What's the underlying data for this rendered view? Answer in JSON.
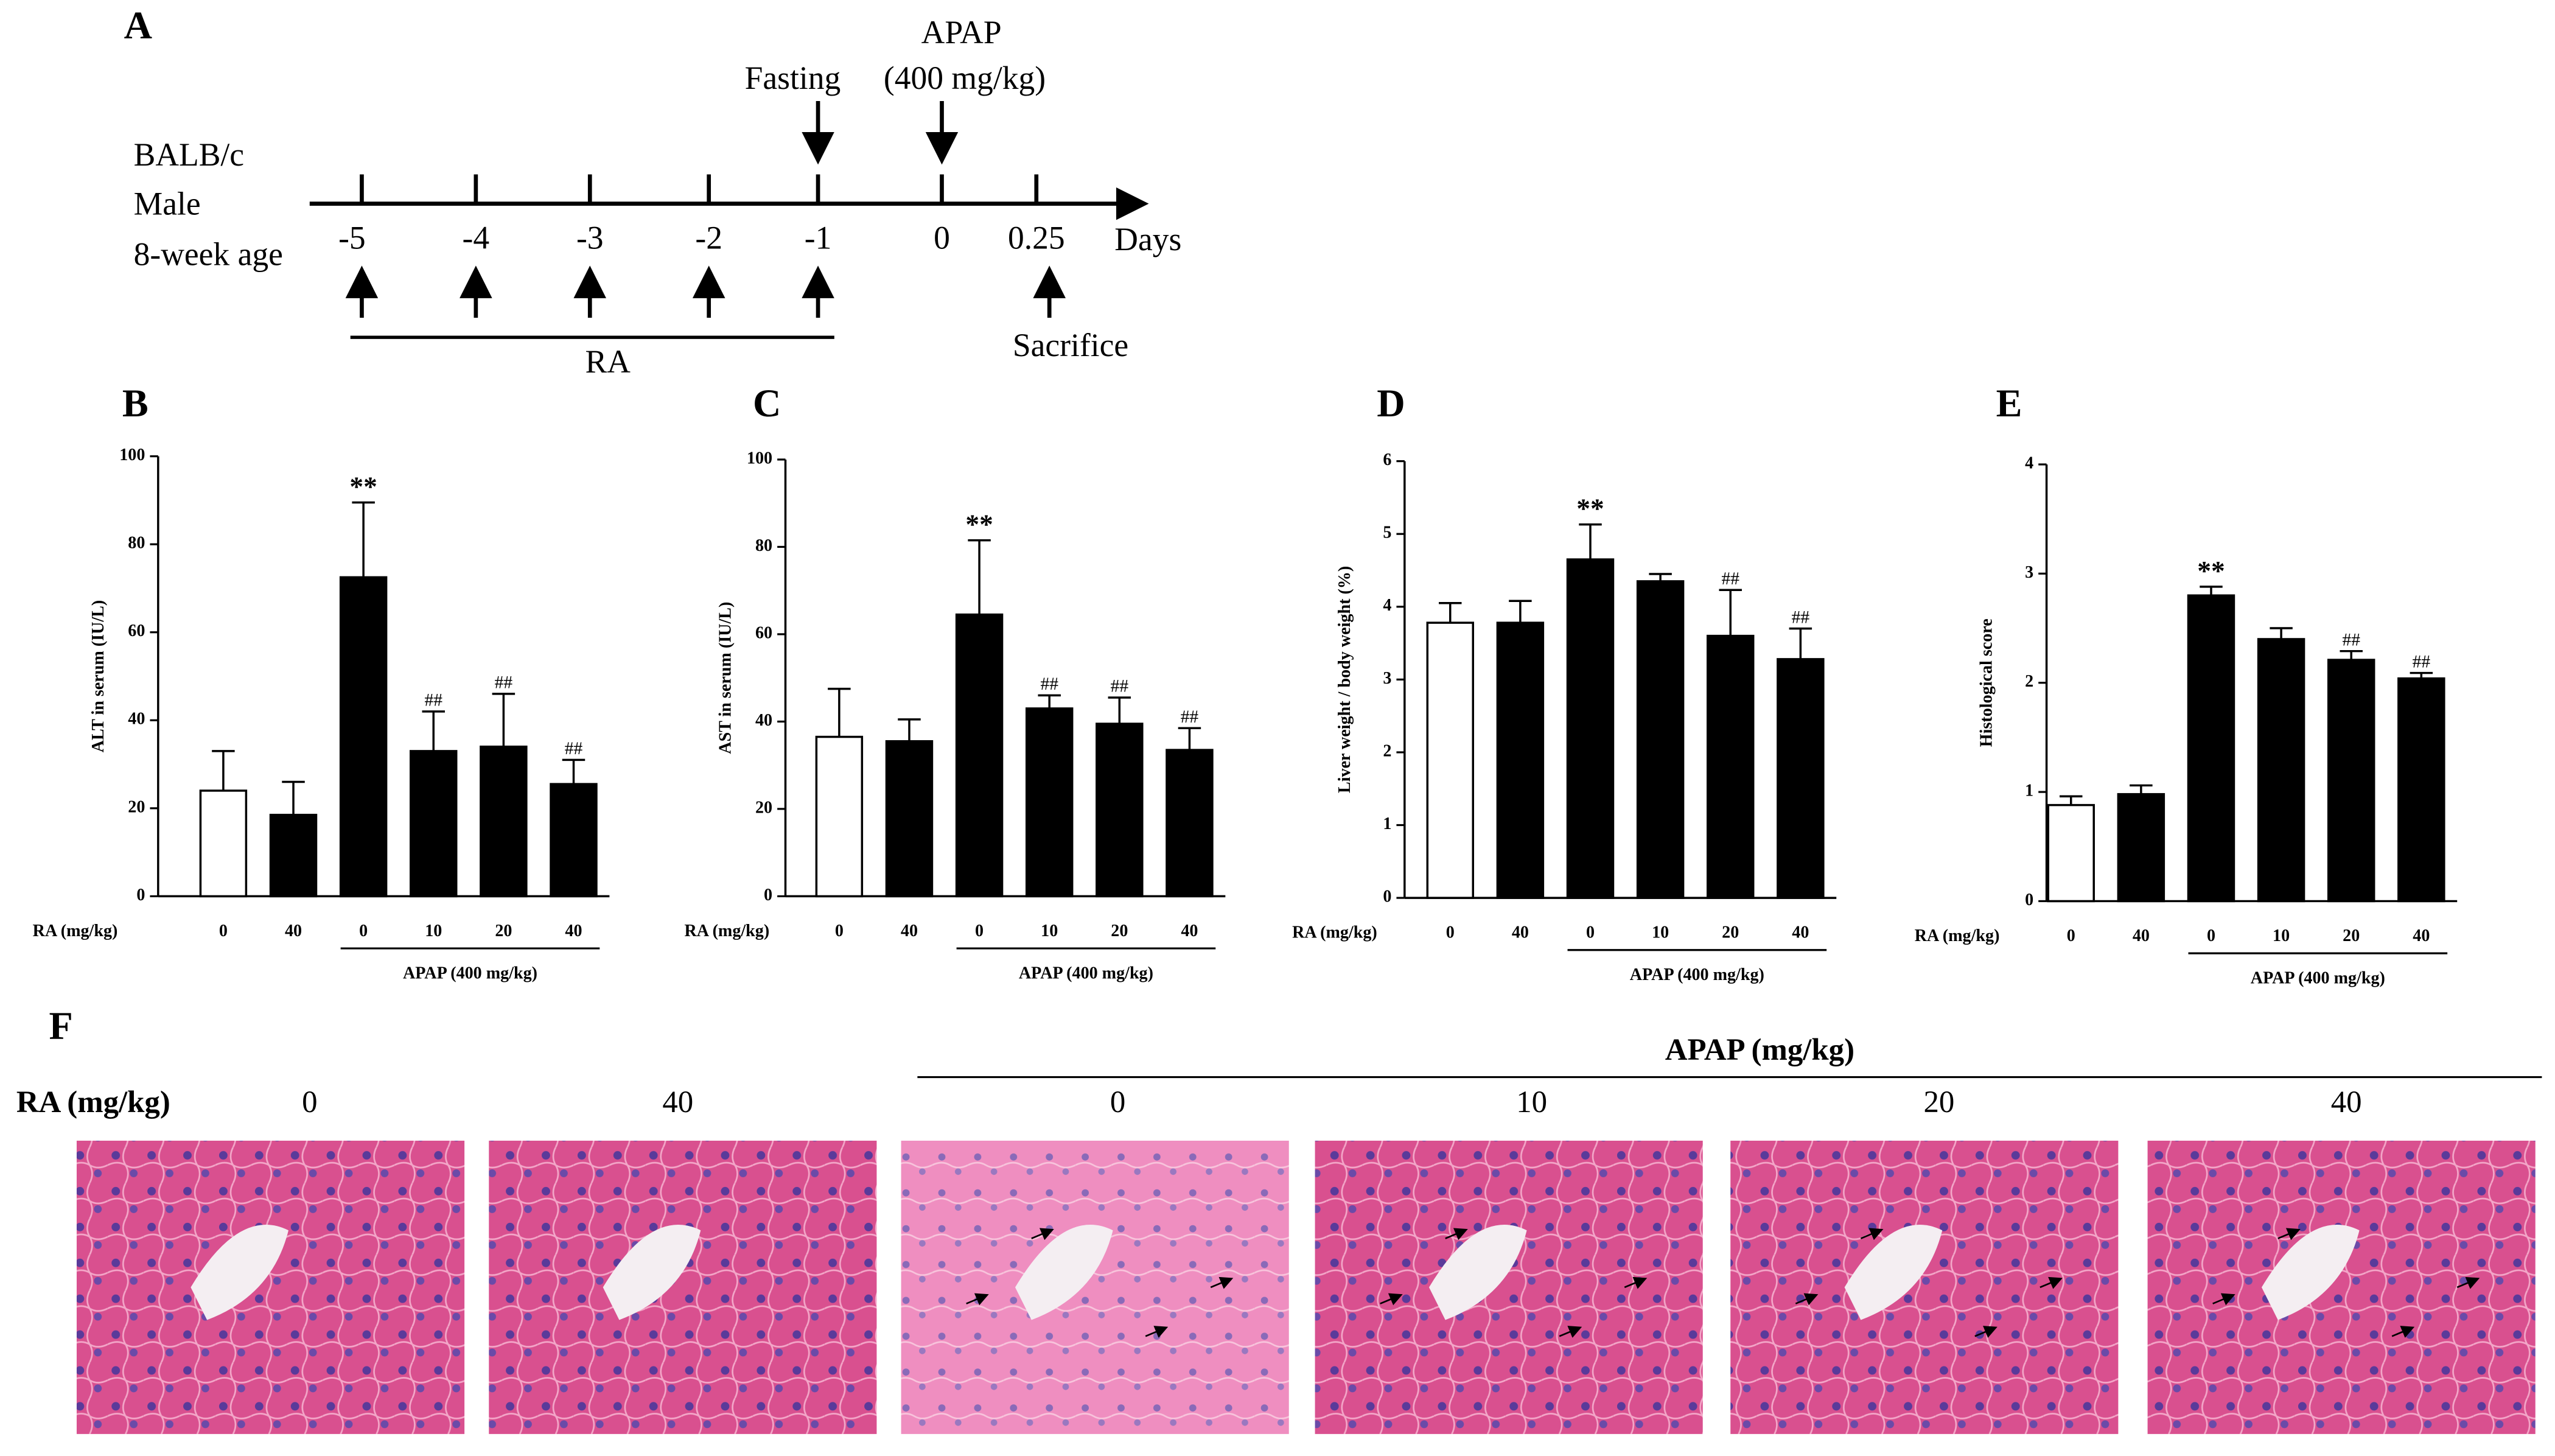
{
  "timeline": {
    "panel": "A",
    "subject": [
      "BALB/c",
      "Male",
      "8-week age"
    ],
    "ticks": [
      -5,
      -4,
      -3,
      -2,
      -1,
      0,
      0.25
    ],
    "unit": "Days",
    "fasting": "Fasting",
    "apap": "APAP",
    "apap_dose": "(400 mg/kg)",
    "treatment": "RA",
    "end": "Sacrifice"
  },
  "chart_data": [
    {
      "type": "bar",
      "panel": "B",
      "ylabel": "ALT in serum (IU/L)",
      "xlabel": "RA (mg/kg)",
      "group_label": "APAP (400 mg/kg)",
      "categories": [
        "0",
        "40",
        "0",
        "10",
        "20",
        "40"
      ],
      "values": [
        24,
        18.5,
        72.5,
        33,
        34,
        25.5
      ],
      "errors": [
        9,
        7.5,
        17,
        9,
        12,
        5.5
      ],
      "colors": [
        "#ffffff",
        "#000000",
        "#000000",
        "#000000",
        "#000000",
        "#000000"
      ],
      "annotations": [
        null,
        null,
        "**",
        "##",
        "##",
        "##"
      ],
      "ylim": [
        0,
        100
      ],
      "yticks": [
        0,
        20,
        40,
        60,
        80,
        100
      ]
    },
    {
      "type": "bar",
      "panel": "C",
      "ylabel": "AST in serum (IU/L)",
      "xlabel": "RA (mg/kg)",
      "group_label": "APAP (400 mg/kg)",
      "categories": [
        "0",
        "40",
        "0",
        "10",
        "20",
        "40"
      ],
      "values": [
        36.5,
        35.5,
        64.5,
        43,
        39.5,
        33.5
      ],
      "errors": [
        11,
        5,
        17,
        3,
        6,
        5
      ],
      "colors": [
        "#ffffff",
        "#000000",
        "#000000",
        "#000000",
        "#000000",
        "#000000"
      ],
      "annotations": [
        null,
        null,
        "**",
        "##",
        "##",
        "##"
      ],
      "ylim": [
        0,
        100
      ],
      "yticks": [
        0,
        20,
        40,
        60,
        80,
        100
      ]
    },
    {
      "type": "bar",
      "panel": "D",
      "ylabel": "Liver weight / body weight (%)",
      "xlabel": "RA (mg/kg)",
      "group_label": "APAP (400 mg/kg)",
      "categories": [
        "0",
        "40",
        "0",
        "10",
        "20",
        "40"
      ],
      "values": [
        3.78,
        3.78,
        4.65,
        4.35,
        3.6,
        3.28
      ],
      "errors": [
        0.27,
        0.3,
        0.48,
        0.1,
        0.63,
        0.42
      ],
      "colors": [
        "#ffffff",
        "#000000",
        "#000000",
        "#000000",
        "#000000",
        "#000000"
      ],
      "annotations": [
        null,
        null,
        "**",
        null,
        "##",
        "##"
      ],
      "ylim": [
        0,
        6
      ],
      "yticks": [
        0,
        1,
        2,
        3,
        4,
        5,
        6
      ]
    },
    {
      "type": "bar",
      "panel": "E",
      "ylabel": "Histological score",
      "xlabel": "RA (mg/kg)",
      "group_label": "APAP (400 mg/kg)",
      "categories": [
        "0",
        "40",
        "0",
        "10",
        "20",
        "40"
      ],
      "values": [
        0.88,
        0.98,
        2.8,
        2.4,
        2.21,
        2.04
      ],
      "errors": [
        0.08,
        0.08,
        0.08,
        0.1,
        0.08,
        0.05
      ],
      "colors": [
        "#ffffff",
        "#000000",
        "#000000",
        "#000000",
        "#000000",
        "#000000"
      ],
      "annotations": [
        null,
        null,
        "**",
        null,
        "##",
        "##"
      ],
      "ylim": [
        0,
        4
      ],
      "yticks": [
        0,
        1,
        2,
        3,
        4
      ]
    }
  ],
  "histology": {
    "panel": "F",
    "row_label": "RA (mg/kg)",
    "group_label": "APAP (mg/kg)",
    "columns": [
      "0",
      "40",
      "0",
      "10",
      "20",
      "40"
    ]
  }
}
